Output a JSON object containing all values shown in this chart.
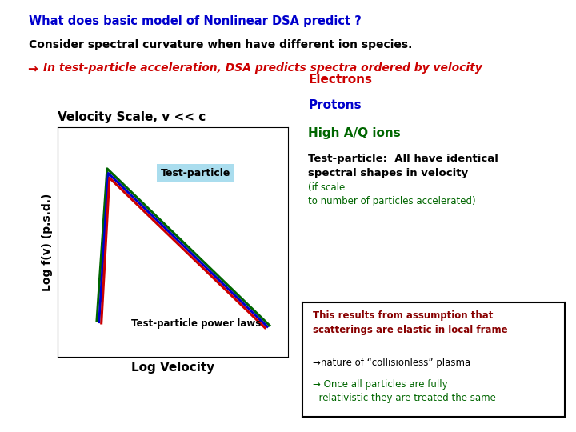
{
  "title1": "What does basic model of Nonlinear DSA predict ?",
  "title1_color": "#0000CC",
  "title2": "Consider spectral curvature when have different ion species.",
  "title2_color": "#000000",
  "title3": "In test-particle acceleration, DSA predicts spectra ordered by velocity",
  "title3_color": "#CC0000",
  "plot_title": "Velocity Scale, v << c",
  "xlabel": "Log Velocity",
  "ylabel": "Log f(v) (p.s.d.)",
  "label_testparticle": "Test-particle",
  "label_powerlaws": "Test-particle power laws",
  "electrons_label": "Electrons",
  "electrons_color": "#CC0000",
  "protons_label": "Protons",
  "protons_color": "#0000CC",
  "highaq_label": "High A/Q ions",
  "highaq_color": "#006600",
  "line_colors": [
    "#CC0000",
    "#0000CC",
    "#006600"
  ],
  "desc1_black": "Test-particle:  All have identical\nspectral shapes in velocity ",
  "desc1_green": "(if scale\nto number of particles accelerated)",
  "desc1_green_color": "#006600",
  "box_text_red": "This results from assumption that\nscatterings are elastic in local frame",
  "box_text_black1": "→nature of “collisionless” plasma",
  "box_text_green": "→ Once all particles are fully\nrelativistic they are treated the same",
  "box_border_color": "#000000",
  "background_color": "#FFFFFF",
  "tp_box_color": "#AAEEFF",
  "title3_arrow": "→"
}
